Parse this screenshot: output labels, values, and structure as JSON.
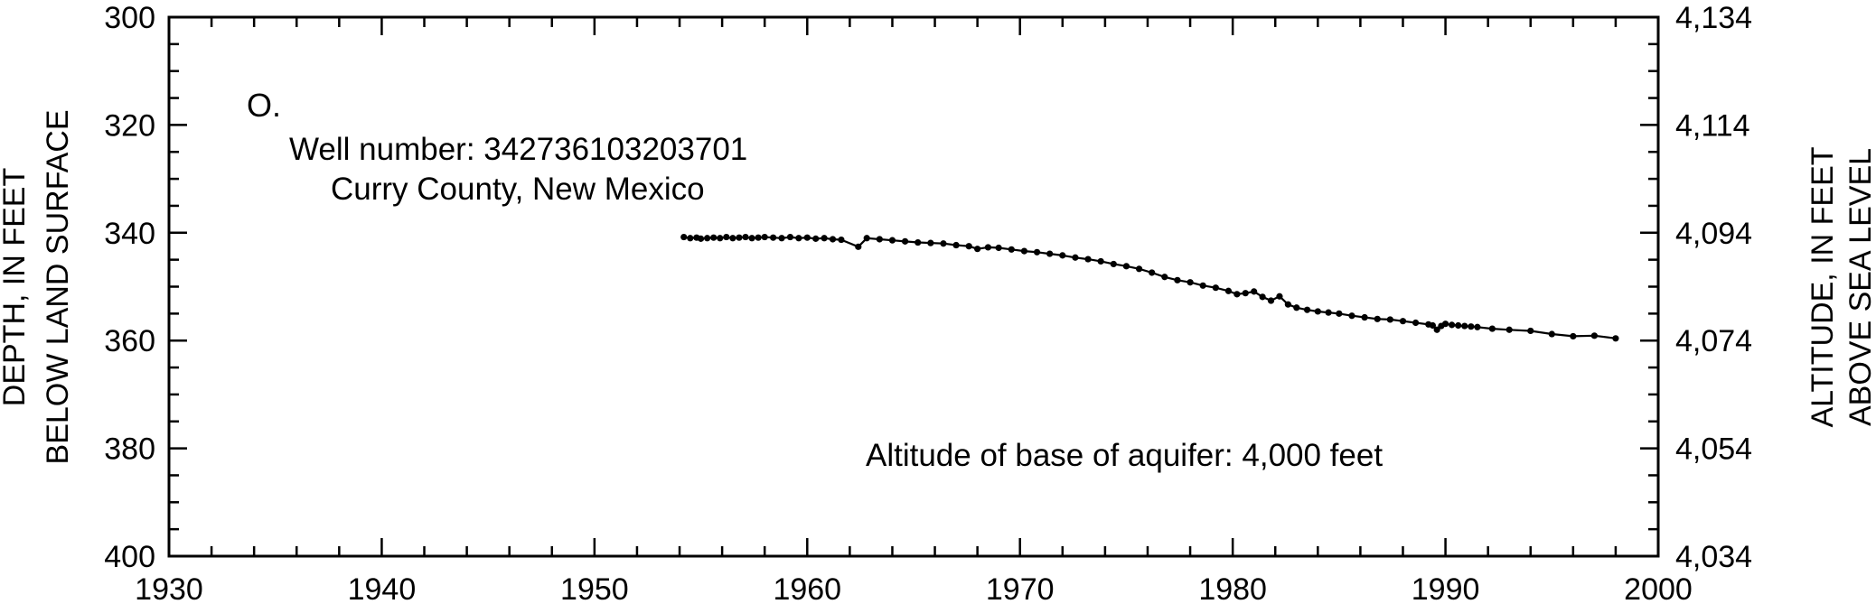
{
  "chart_data": {
    "type": "line",
    "panel_label": "O.",
    "annotations": {
      "well_number": "Well number: 342736103203701",
      "county": "Curry County, New Mexico",
      "base_of_aquifer": "Altitude of base of aquifer: 4,000 feet"
    },
    "ylabel_left": [
      "DEPTH, IN FEET",
      "BELOW LAND SURFACE"
    ],
    "ylabel_right": [
      "ALTITUDE, IN FEET",
      "ABOVE SEA LEVEL"
    ],
    "xlim": [
      1930,
      2000
    ],
    "ylim": [
      300,
      400
    ],
    "y_inverted": true,
    "x_ticks": [
      "1930",
      "1940",
      "1950",
      "1960",
      "1970",
      "1980",
      "1990",
      "2000"
    ],
    "y_ticks_left": [
      "300",
      "320",
      "340",
      "360",
      "380",
      "400"
    ],
    "y_ticks_right": [
      "4,134",
      "4,114",
      "4,094",
      "4,074",
      "4,054",
      "4,034"
    ],
    "grid": false,
    "series": [
      {
        "x": [
          1954.2,
          1954.5,
          1954.8,
          1955.0,
          1955.3,
          1955.6,
          1955.9,
          1956.2,
          1956.5,
          1956.8,
          1957.1,
          1957.4,
          1957.7,
          1958.0,
          1958.4,
          1958.8,
          1959.2,
          1959.6,
          1960.0,
          1960.4,
          1960.8,
          1961.2,
          1961.6,
          1962.4,
          1962.8,
          1963.4,
          1964.0,
          1964.6,
          1965.2,
          1965.8,
          1966.4,
          1967.0,
          1967.6,
          1968.0,
          1968.5,
          1969.0,
          1969.6,
          1970.2,
          1970.8,
          1971.4,
          1972.0,
          1972.6,
          1973.2,
          1973.8,
          1974.4,
          1975.0,
          1975.6,
          1976.2,
          1976.8,
          1977.4,
          1978.0,
          1978.6,
          1979.2,
          1979.8,
          1980.2,
          1980.6,
          1981.0,
          1981.4,
          1981.8,
          1982.2,
          1982.6,
          1983.0,
          1983.5,
          1984.0,
          1984.5,
          1985.0,
          1985.6,
          1986.2,
          1986.8,
          1987.4,
          1988.0,
          1988.6,
          1989.2,
          1989.4,
          1989.6,
          1989.8,
          1990.0,
          1990.3,
          1990.6,
          1990.9,
          1991.2,
          1991.5,
          1992.2,
          1993.0,
          1994.0,
          1995.0,
          1996.0,
          1997.0,
          1998.0
        ],
        "y": [
          340.8,
          341.0,
          340.9,
          341.1,
          341.0,
          340.9,
          341.0,
          340.8,
          341.0,
          340.9,
          340.8,
          341.0,
          340.9,
          340.8,
          340.9,
          341.0,
          340.8,
          341.0,
          340.9,
          341.1,
          341.0,
          341.2,
          341.3,
          342.6,
          341.0,
          341.2,
          341.4,
          341.6,
          341.8,
          341.9,
          342.0,
          342.3,
          342.5,
          343.0,
          342.7,
          342.8,
          343.1,
          343.4,
          343.6,
          343.9,
          344.2,
          344.6,
          344.9,
          345.3,
          345.8,
          346.2,
          346.7,
          347.4,
          348.2,
          348.8,
          349.2,
          349.8,
          350.2,
          350.8,
          351.4,
          351.2,
          350.9,
          351.9,
          352.6,
          351.8,
          353.3,
          353.9,
          354.3,
          354.6,
          354.8,
          355.0,
          355.4,
          355.7,
          356.0,
          356.1,
          356.4,
          356.7,
          357.0,
          357.2,
          358.0,
          357.3,
          356.9,
          357.1,
          357.2,
          357.3,
          357.4,
          357.5,
          357.8,
          358.0,
          358.2,
          358.8,
          359.2,
          359.1,
          359.6
        ]
      }
    ]
  }
}
